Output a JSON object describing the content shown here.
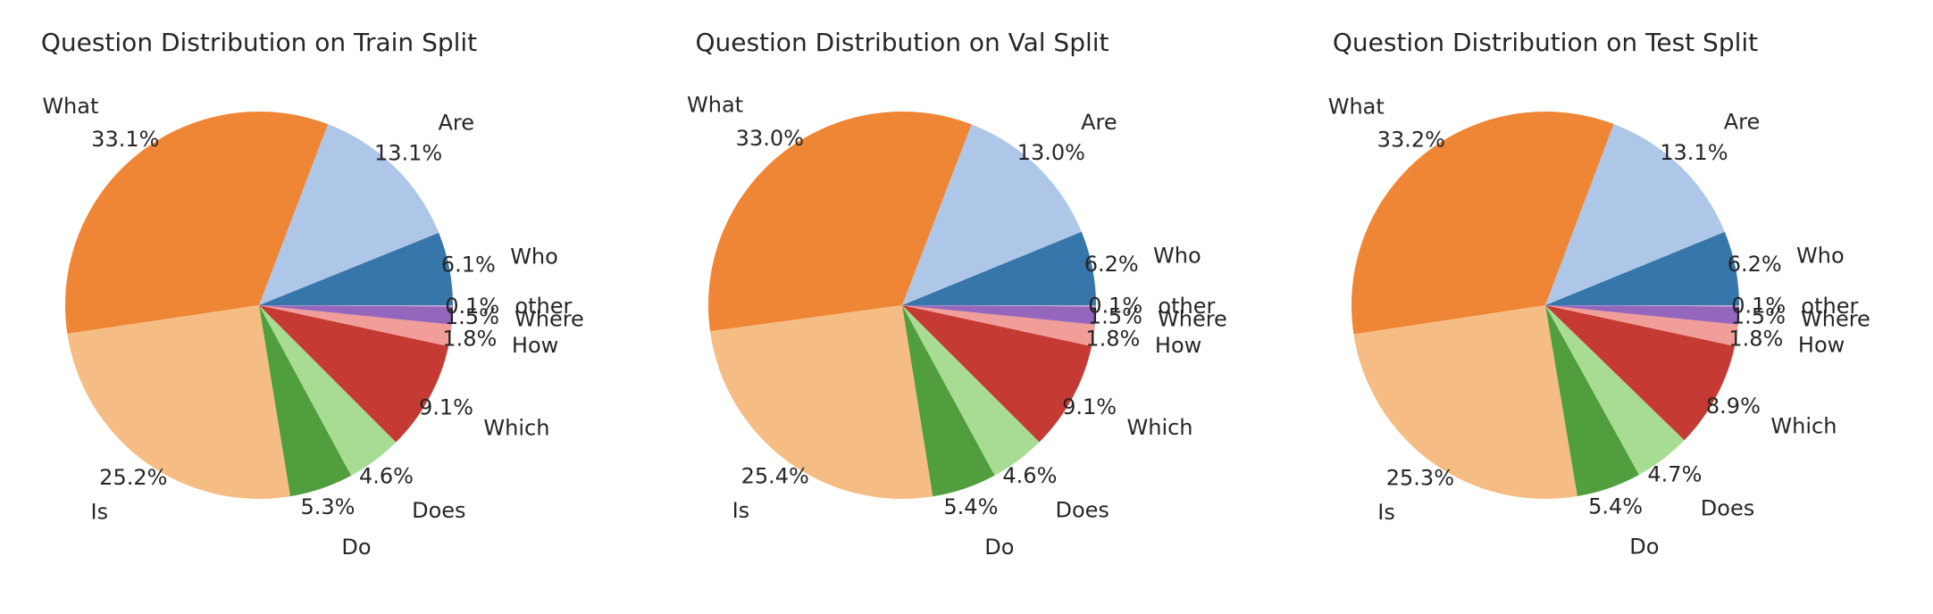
{
  "chart_data": [
    {
      "type": "pie",
      "title": "Question Distribution on Train Split",
      "slices": [
        {
          "label": "Who",
          "value": 6.1,
          "pct_label": "6.1%",
          "color": "#3776ab"
        },
        {
          "label": "Are",
          "value": 13.1,
          "pct_label": "13.1%",
          "color": "#aec7e8"
        },
        {
          "label": "What",
          "value": 33.1,
          "pct_label": "33.1%",
          "color": "#ef8636"
        },
        {
          "label": "Is",
          "value": 25.2,
          "pct_label": "25.2%",
          "color": "#f5bd84"
        },
        {
          "label": "Do",
          "value": 5.3,
          "pct_label": "5.3%",
          "color": "#519e3e"
        },
        {
          "label": "Does",
          "value": 4.6,
          "pct_label": "4.6%",
          "color": "#a8dc93"
        },
        {
          "label": "Which",
          "value": 9.1,
          "pct_label": "9.1%",
          "color": "#c53a32"
        },
        {
          "label": "How",
          "value": 1.8,
          "pct_label": "1.8%",
          "color": "#f19d99"
        },
        {
          "label": "Where",
          "value": 1.5,
          "pct_label": "1.5%",
          "color": "#9467bd"
        },
        {
          "label": "other",
          "value": 0.1,
          "pct_label": "0.1%",
          "color": "#c5b0d5"
        }
      ]
    },
    {
      "type": "pie",
      "title": "Question Distribution on Val Split",
      "slices": [
        {
          "label": "Who",
          "value": 6.2,
          "pct_label": "6.2%",
          "color": "#3776ab"
        },
        {
          "label": "Are",
          "value": 13.0,
          "pct_label": "13.0%",
          "color": "#aec7e8"
        },
        {
          "label": "What",
          "value": 33.0,
          "pct_label": "33.0%",
          "color": "#ef8636"
        },
        {
          "label": "Is",
          "value": 25.4,
          "pct_label": "25.4%",
          "color": "#f5bd84"
        },
        {
          "label": "Do",
          "value": 5.4,
          "pct_label": "5.4%",
          "color": "#519e3e"
        },
        {
          "label": "Does",
          "value": 4.6,
          "pct_label": "4.6%",
          "color": "#a8dc93"
        },
        {
          "label": "Which",
          "value": 9.1,
          "pct_label": "9.1%",
          "color": "#c53a32"
        },
        {
          "label": "How",
          "value": 1.8,
          "pct_label": "1.8%",
          "color": "#f19d99"
        },
        {
          "label": "Where",
          "value": 1.5,
          "pct_label": "1.5%",
          "color": "#9467bd"
        },
        {
          "label": "other",
          "value": 0.1,
          "pct_label": "0.1%",
          "color": "#c5b0d5"
        }
      ]
    },
    {
      "type": "pie",
      "title": "Question Distribution on Test Split",
      "slices": [
        {
          "label": "Who",
          "value": 6.2,
          "pct_label": "6.2%",
          "color": "#3776ab"
        },
        {
          "label": "Are",
          "value": 13.1,
          "pct_label": "13.1%",
          "color": "#aec7e8"
        },
        {
          "label": "What",
          "value": 33.2,
          "pct_label": "33.2%",
          "color": "#ef8636"
        },
        {
          "label": "Is",
          "value": 25.3,
          "pct_label": "25.3%",
          "color": "#f5bd84"
        },
        {
          "label": "Do",
          "value": 5.4,
          "pct_label": "5.4%",
          "color": "#519e3e"
        },
        {
          "label": "Does",
          "value": 4.7,
          "pct_label": "4.7%",
          "color": "#a8dc93"
        },
        {
          "label": "Which",
          "value": 8.9,
          "pct_label": "8.9%",
          "color": "#c53a32"
        },
        {
          "label": "How",
          "value": 1.8,
          "pct_label": "1.8%",
          "color": "#f19d99"
        },
        {
          "label": "Where",
          "value": 1.5,
          "pct_label": "1.5%",
          "color": "#9467bd"
        },
        {
          "label": "other",
          "value": 0.1,
          "pct_label": "0.1%",
          "color": "#c5b0d5"
        }
      ]
    }
  ]
}
